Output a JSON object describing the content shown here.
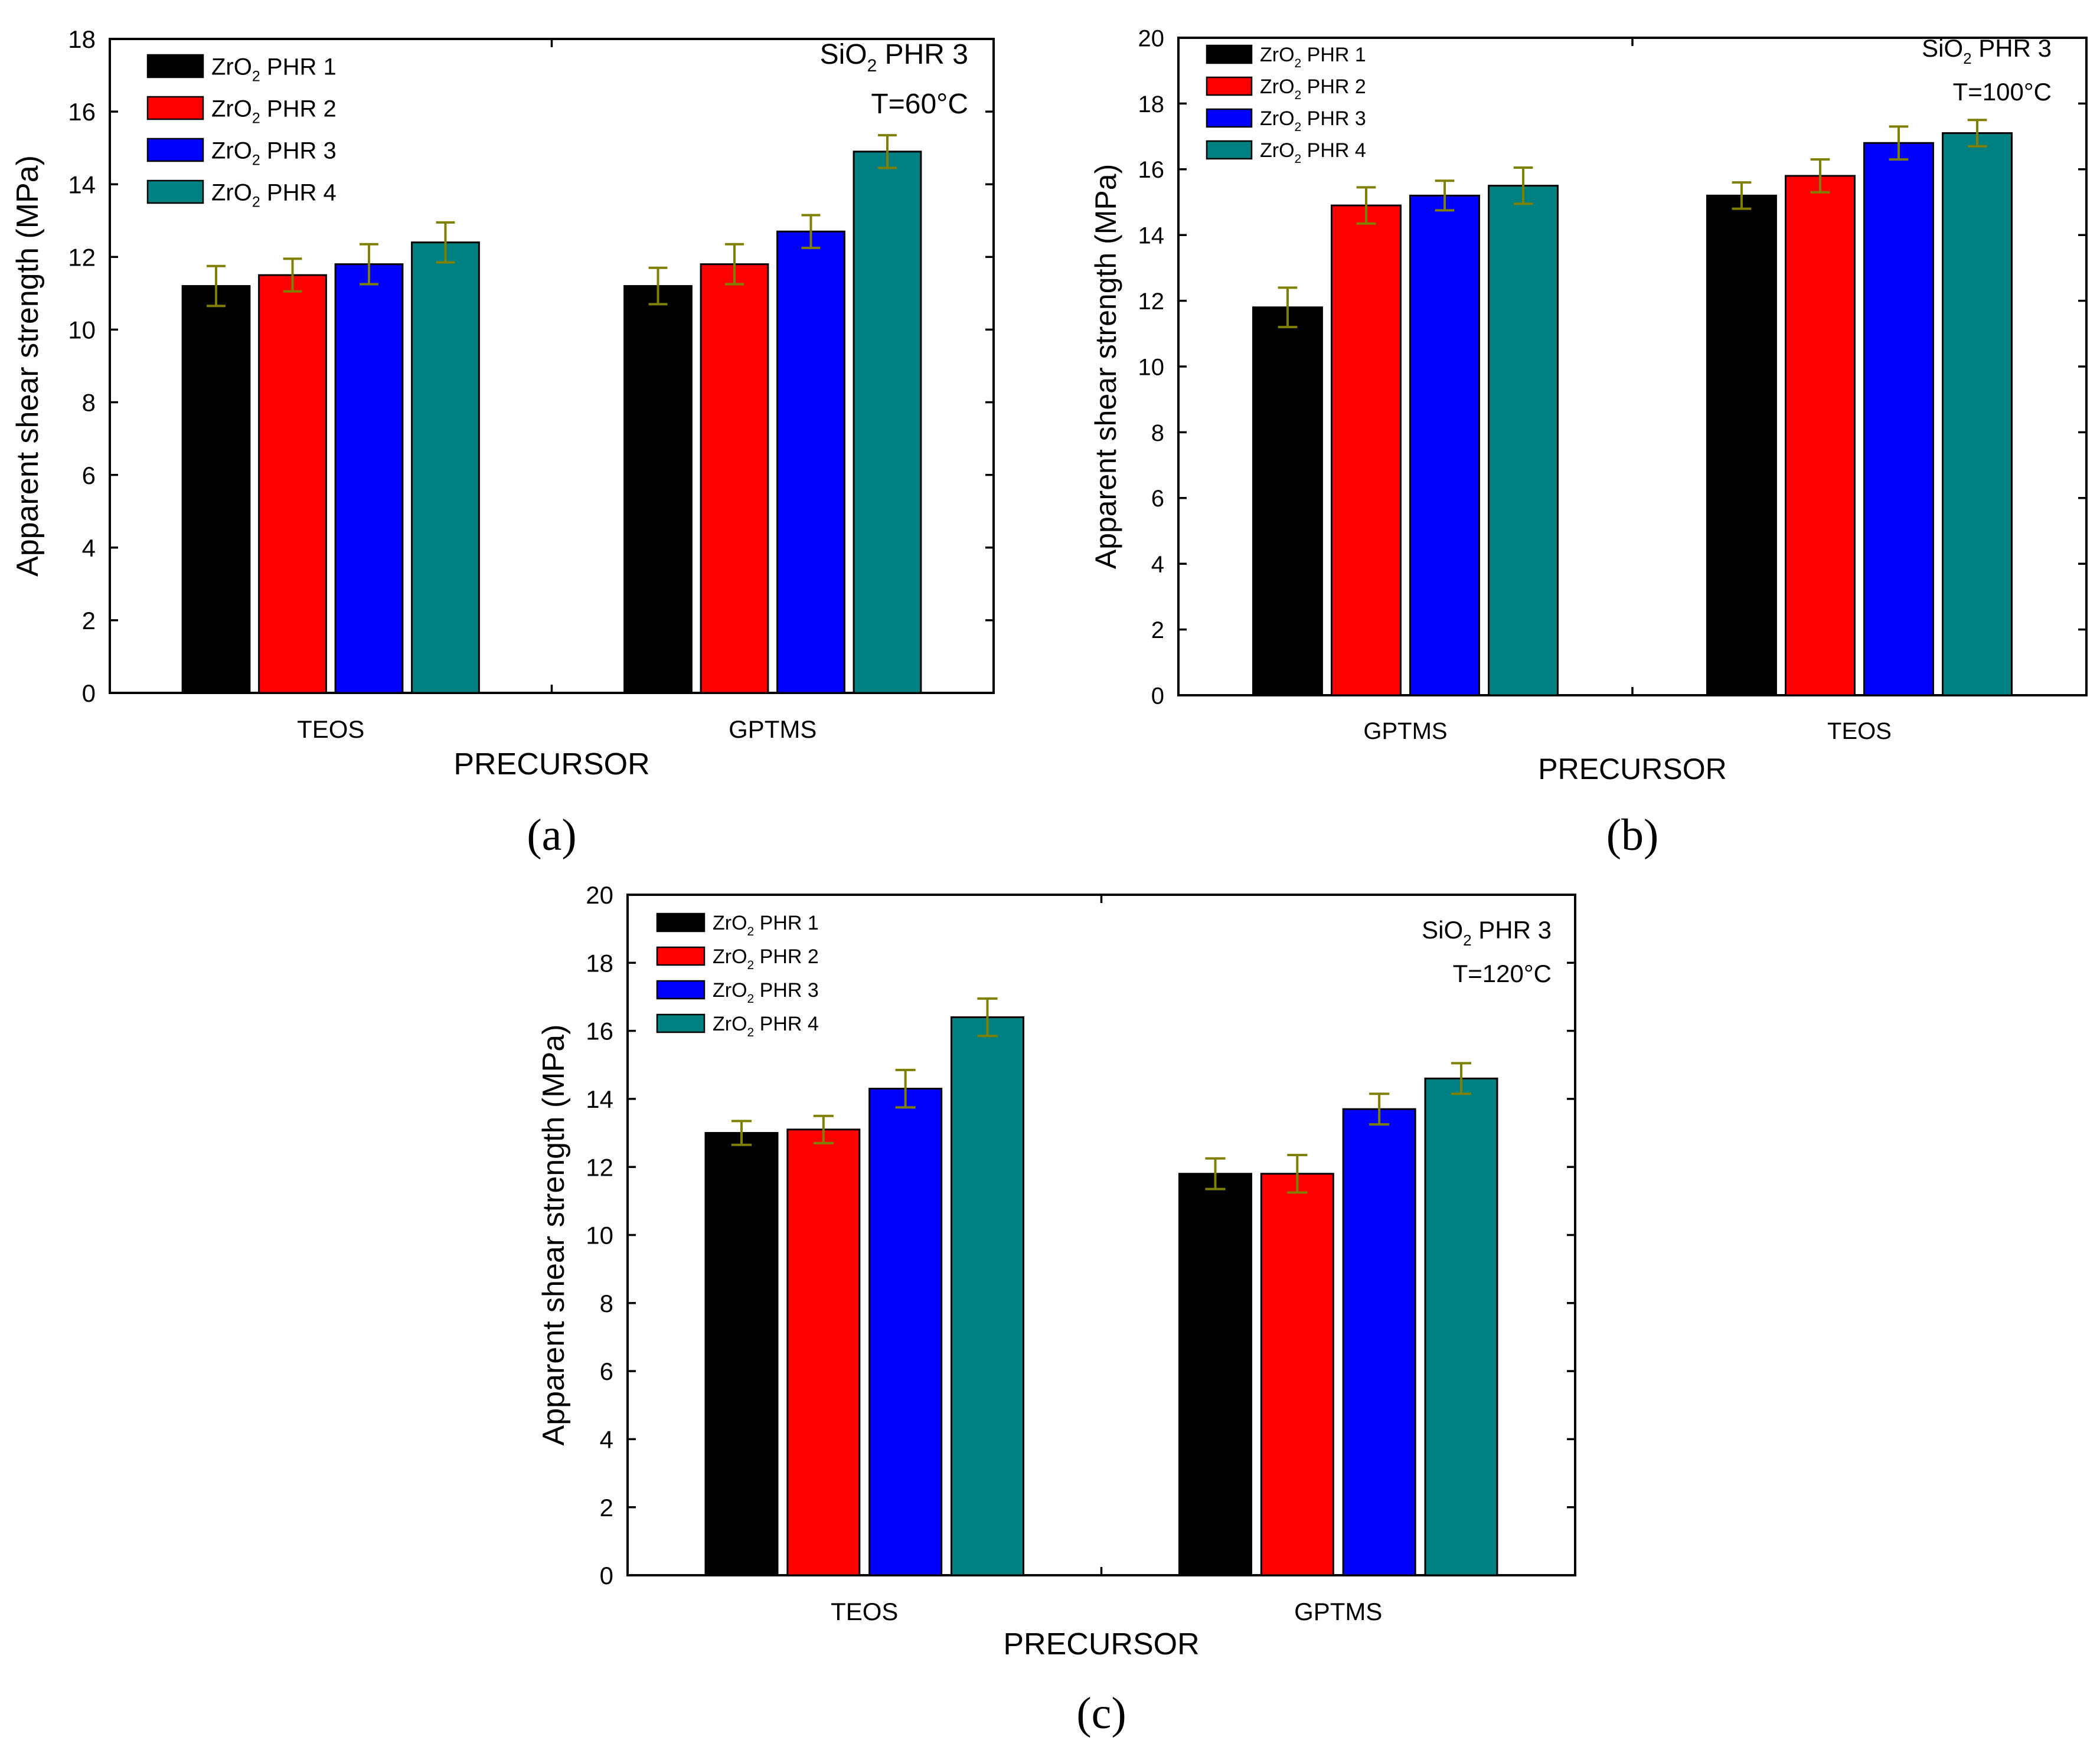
{
  "colors": {
    "series": [
      "#000000",
      "#ff0000",
      "#0000ff",
      "#008080"
    ],
    "errorbar": "#808000",
    "axis": "#000000"
  },
  "chart_data": [
    {
      "panel": "(a)",
      "type": "bar",
      "annotation": [
        "SiO2 PHR 3",
        "T=60°C"
      ],
      "xlabel": "PRECURSOR",
      "ylabel": "Apparent shear strength (MPa)",
      "ylim": [
        0,
        18
      ],
      "ytick_step": 2,
      "legend_placement": "top-left",
      "categories": [
        "TEOS",
        "GPTMS"
      ],
      "series": [
        {
          "name": "ZrO2 PHR 1",
          "values": [
            11.2,
            11.2
          ],
          "errors": [
            0.55,
            0.5
          ]
        },
        {
          "name": "ZrO2 PHR 2",
          "values": [
            11.5,
            11.8
          ],
          "errors": [
            0.45,
            0.55
          ]
        },
        {
          "name": "ZrO2 PHR 3",
          "values": [
            11.8,
            12.7
          ],
          "errors": [
            0.55,
            0.45
          ]
        },
        {
          "name": "ZrO2 PHR 4",
          "values": [
            12.4,
            14.9
          ],
          "errors": [
            0.55,
            0.45
          ]
        }
      ]
    },
    {
      "panel": "(b)",
      "type": "bar",
      "annotation": [
        "SiO2 PHR 3",
        "T=100°C"
      ],
      "xlabel": "PRECURSOR",
      "ylabel": "Apparent shear strength (MPa)",
      "ylim": [
        0,
        20
      ],
      "ytick_step": 2,
      "legend_placement": "top-left",
      "categories": [
        "GPTMS",
        "TEOS"
      ],
      "series": [
        {
          "name": "ZrO2 PHR 1",
          "values": [
            11.8,
            15.2
          ],
          "errors": [
            0.6,
            0.4
          ]
        },
        {
          "name": "ZrO2 PHR 2",
          "values": [
            14.9,
            15.8
          ],
          "errors": [
            0.55,
            0.5
          ]
        },
        {
          "name": "ZrO2 PHR 3",
          "values": [
            15.2,
            16.8
          ],
          "errors": [
            0.45,
            0.5
          ]
        },
        {
          "name": "ZrO2 PHR 4",
          "values": [
            15.5,
            17.1
          ],
          "errors": [
            0.55,
            0.4
          ]
        }
      ]
    },
    {
      "panel": "(c)",
      "type": "bar",
      "annotation": [
        "SiO2 PHR 3",
        "T=120°C"
      ],
      "xlabel": "PRECURSOR",
      "ylabel": "Apparent shear strength (MPa)",
      "ylim": [
        0,
        20
      ],
      "ytick_step": 2,
      "legend_placement": "top-left",
      "categories": [
        "TEOS",
        "GPTMS"
      ],
      "series": [
        {
          "name": "ZrO2 PHR 1",
          "values": [
            13.0,
            11.8
          ],
          "errors": [
            0.35,
            0.45
          ]
        },
        {
          "name": "ZrO2 PHR 2",
          "values": [
            13.1,
            11.8
          ],
          "errors": [
            0.4,
            0.55
          ]
        },
        {
          "name": "ZrO2 PHR 3",
          "values": [
            14.3,
            13.7
          ],
          "errors": [
            0.55,
            0.45
          ]
        },
        {
          "name": "ZrO2 PHR 4",
          "values": [
            16.4,
            14.6
          ],
          "errors": [
            0.55,
            0.45
          ]
        }
      ]
    }
  ]
}
